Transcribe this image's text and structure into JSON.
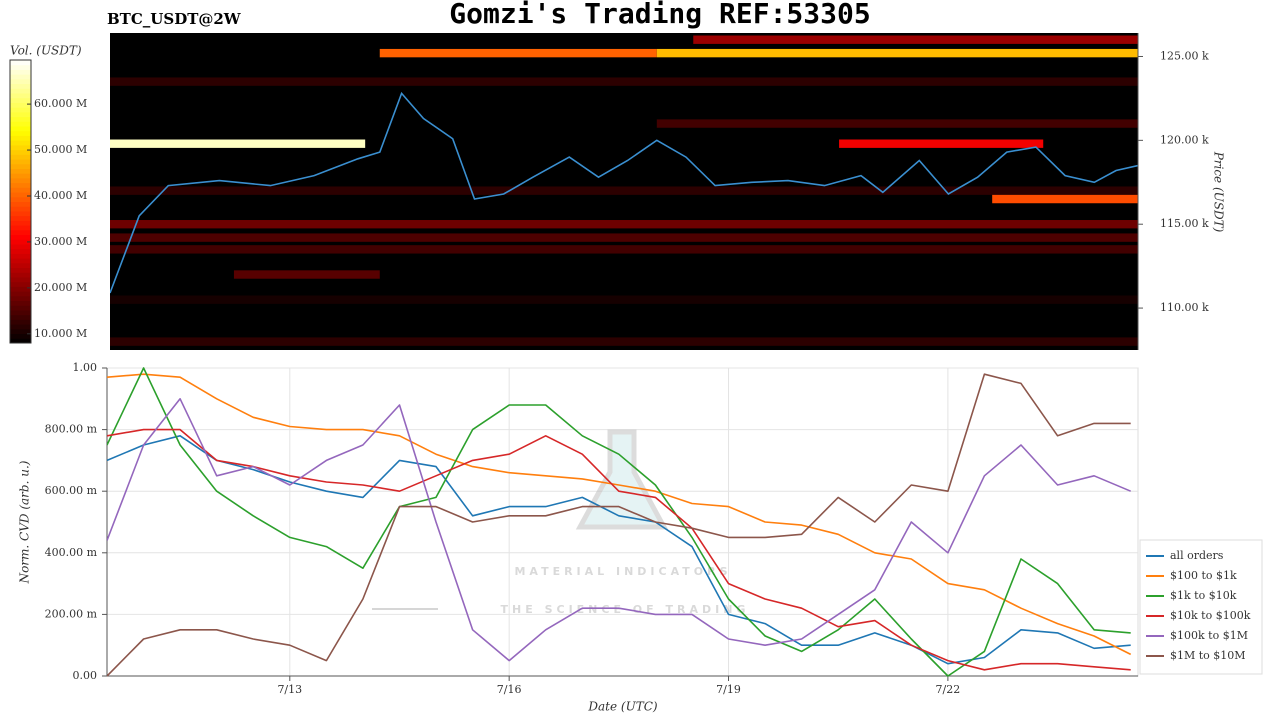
{
  "chart_data": [
    {
      "type": "heatmap",
      "title": "Gomzi's Trading REF:53305",
      "subtitle": "BTC_USDT@2W",
      "y_label": "Price (USDT)",
      "colorbar_label": "Vol. (USDT)",
      "colormap": "hot",
      "xlim": [
        10.5,
        24.6
      ],
      "ylim": [
        107500,
        126400
      ],
      "yticks": [
        {
          "value": 110000,
          "label": "110.00 k"
        },
        {
          "value": 115000,
          "label": "115.00 k"
        },
        {
          "value": 120000,
          "label": "120.00 k"
        },
        {
          "value": 125000,
          "label": "125.00 k"
        }
      ],
      "clim": [
        8000000,
        69600000
      ],
      "colorbar_ticks": [
        {
          "value": 10000000,
          "label": "10.000 M"
        },
        {
          "value": 20000000,
          "label": "20.000 M"
        },
        {
          "value": 30000000,
          "label": "30.000 M"
        },
        {
          "value": 40000000,
          "label": "40.000 M"
        },
        {
          "value": 50000000,
          "label": "50.000 M"
        },
        {
          "value": 60000000,
          "label": "60.000 M"
        }
      ],
      "bin_size": 500,
      "bands": [
        {
          "price": 125200,
          "start": 14.2,
          "end": 18.0,
          "volume": 40000000
        },
        {
          "price": 125200,
          "start": 18.0,
          "end": 24.6,
          "volume": 48000000
        },
        {
          "price": 126000,
          "start": 18.5,
          "end": 24.6,
          "volume": 22000000
        },
        {
          "price": 123500,
          "start": 10.5,
          "end": 24.6,
          "volume": 12000000
        },
        {
          "price": 121000,
          "start": 18.0,
          "end": 24.6,
          "volume": 14000000
        },
        {
          "price": 119800,
          "start": 10.5,
          "end": 14.0,
          "volume": 66000000
        },
        {
          "price": 119800,
          "start": 20.5,
          "end": 23.3,
          "volume": 30000000
        },
        {
          "price": 117000,
          "start": 10.5,
          "end": 24.6,
          "volume": 12000000
        },
        {
          "price": 116500,
          "start": 22.6,
          "end": 24.6,
          "volume": 38000000
        },
        {
          "price": 115000,
          "start": 10.5,
          "end": 24.6,
          "volume": 18000000
        },
        {
          "price": 114200,
          "start": 10.5,
          "end": 24.6,
          "volume": 15000000
        },
        {
          "price": 113500,
          "start": 10.5,
          "end": 24.6,
          "volume": 14000000
        },
        {
          "price": 112000,
          "start": 12.2,
          "end": 14.2,
          "volume": 16000000
        },
        {
          "price": 110500,
          "start": 10.5,
          "end": 24.6,
          "volume": 10000000
        },
        {
          "price": 108000,
          "start": 10.5,
          "end": 24.6,
          "volume": 12000000
        }
      ],
      "line_color": "#3a8fd0",
      "x": [
        10.5,
        10.9,
        11.3,
        12.0,
        12.7,
        13.3,
        13.9,
        14.2,
        14.5,
        14.8,
        15.2,
        15.5,
        15.9,
        16.3,
        16.8,
        17.2,
        17.6,
        18.0,
        18.4,
        18.8,
        19.3,
        19.8,
        20.3,
        20.8,
        21.1,
        21.6,
        22.0,
        22.4,
        22.8,
        23.2,
        23.6,
        24.0,
        24.3,
        24.6
      ],
      "values": [
        110900,
        115500,
        117300,
        117600,
        117300,
        117900,
        118900,
        119300,
        122800,
        121300,
        120100,
        116500,
        116800,
        117800,
        119000,
        117800,
        118800,
        120000,
        119000,
        117300,
        117500,
        117600,
        117300,
        117900,
        116900,
        118800,
        116800,
        117800,
        119300,
        119600,
        117900,
        117500,
        118200,
        118500
      ]
    },
    {
      "type": "line",
      "x_label": "Date (UTC)",
      "y_label": "Norm. CVD (arb. u.)",
      "annotations": [
        "MATERIAL INDICATORS",
        "THE SCIENCE OF TRADING"
      ],
      "xlim": [
        10.5,
        24.6
      ],
      "ylim": [
        0,
        1
      ],
      "xticks": [
        {
          "value": 13,
          "label": "7/13"
        },
        {
          "value": 16,
          "label": "7/16"
        },
        {
          "value": 19,
          "label": "7/19"
        },
        {
          "value": 22,
          "label": "7/22"
        }
      ],
      "yticks": [
        {
          "value": 0,
          "label": "0.00"
        },
        {
          "value": 0.2,
          "label": "200.00 m"
        },
        {
          "value": 0.4,
          "label": "400.00 m"
        },
        {
          "value": 0.6,
          "label": "600.00 m"
        },
        {
          "value": 0.8,
          "label": "800.00 m"
        },
        {
          "value": 1,
          "label": "1.00"
        }
      ],
      "grid": true,
      "legend": "lower right outside",
      "x": [
        10.5,
        11,
        11.5,
        12,
        12.5,
        13,
        13.5,
        14,
        14.5,
        15,
        15.5,
        16,
        16.5,
        17,
        17.5,
        18,
        18.5,
        19,
        19.5,
        20,
        20.5,
        21,
        21.5,
        22,
        22.5,
        23,
        23.5,
        24,
        24.5
      ],
      "series": [
        {
          "name": "all orders",
          "color": "#1f77b4",
          "values": [
            0.7,
            0.75,
            0.78,
            0.7,
            0.67,
            0.63,
            0.6,
            0.58,
            0.7,
            0.68,
            0.52,
            0.55,
            0.55,
            0.58,
            0.52,
            0.5,
            0.42,
            0.2,
            0.17,
            0.1,
            0.1,
            0.14,
            0.1,
            0.04,
            0.06,
            0.15,
            0.14,
            0.09,
            0.1
          ]
        },
        {
          "name": "$100 to $1k",
          "color": "#ff7f0e",
          "values": [
            0.97,
            0.98,
            0.97,
            0.9,
            0.84,
            0.81,
            0.8,
            0.8,
            0.78,
            0.72,
            0.68,
            0.66,
            0.65,
            0.64,
            0.62,
            0.6,
            0.56,
            0.55,
            0.5,
            0.49,
            0.46,
            0.4,
            0.38,
            0.3,
            0.28,
            0.22,
            0.17,
            0.13,
            0.07
          ]
        },
        {
          "name": "$1k to $10k",
          "color": "#2ca02c",
          "values": [
            0.75,
            1.0,
            0.75,
            0.6,
            0.52,
            0.45,
            0.42,
            0.35,
            0.55,
            0.58,
            0.8,
            0.88,
            0.88,
            0.78,
            0.72,
            0.62,
            0.45,
            0.25,
            0.13,
            0.08,
            0.15,
            0.25,
            0.12,
            0.0,
            0.08,
            0.38,
            0.3,
            0.15,
            0.14
          ]
        },
        {
          "name": "$10k to $100k",
          "color": "#d62728",
          "values": [
            0.78,
            0.8,
            0.8,
            0.7,
            0.68,
            0.65,
            0.63,
            0.62,
            0.6,
            0.65,
            0.7,
            0.72,
            0.78,
            0.72,
            0.6,
            0.58,
            0.48,
            0.3,
            0.25,
            0.22,
            0.16,
            0.18,
            0.1,
            0.05,
            0.02,
            0.04,
            0.04,
            0.03,
            0.02
          ]
        },
        {
          "name": "$100k to $1M",
          "color": "#9467bd",
          "values": [
            0.44,
            0.75,
            0.9,
            0.65,
            0.68,
            0.62,
            0.7,
            0.75,
            0.88,
            0.5,
            0.15,
            0.05,
            0.15,
            0.22,
            0.22,
            0.2,
            0.2,
            0.12,
            0.1,
            0.12,
            0.2,
            0.28,
            0.5,
            0.4,
            0.65,
            0.75,
            0.62,
            0.65,
            0.6
          ]
        },
        {
          "name": "$1M to $10M",
          "color": "#8c564b",
          "values": [
            0.0,
            0.12,
            0.15,
            0.15,
            0.12,
            0.1,
            0.05,
            0.25,
            0.55,
            0.55,
            0.5,
            0.52,
            0.52,
            0.55,
            0.55,
            0.5,
            0.48,
            0.45,
            0.45,
            0.46,
            0.58,
            0.5,
            0.62,
            0.6,
            0.98,
            0.95,
            0.78,
            0.82,
            0.82
          ]
        }
      ]
    }
  ]
}
